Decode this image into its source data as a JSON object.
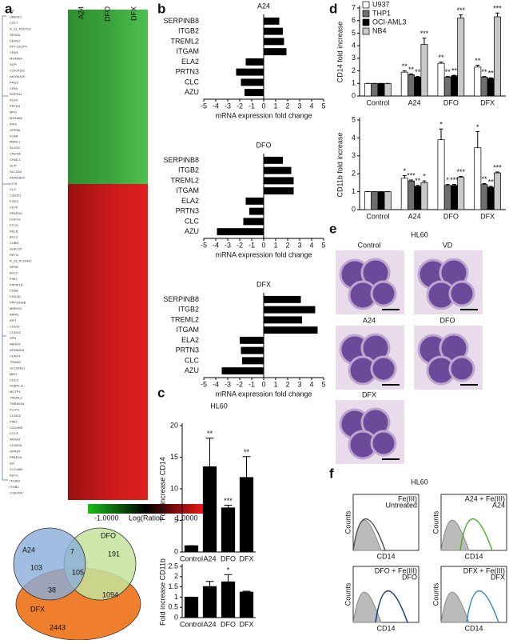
{
  "panel_labels": [
    "a",
    "b",
    "c",
    "d",
    "e",
    "f"
  ],
  "heatmap": {
    "columns": [
      "A24",
      "DFO",
      "DFX"
    ],
    "colorbar_labels": [
      "-1.0000",
      "1.0000"
    ],
    "colorbar_title": "Log(Ratio)",
    "genes": [
      "KIT",
      "UBE2E1",
      "CST7",
      "A_23_P167111",
      "SESN3",
      "CEPA3",
      "DPY19L2P4",
      "CPA3",
      "MS4A6A",
      "SLPI",
      "C20orf103",
      "AK095148",
      "PRG3",
      "CPA3",
      "ROPN1L",
      "PLD4",
      "PRTN3",
      "MPO",
      "MS4A6A",
      "IRF8",
      "GPR56",
      "FLNA",
      "MBNL1",
      "ALDOC",
      "C5orf20",
      "CHI3L1",
      "SLPI",
      "SLC2A5",
      "AK001829",
      "LY75",
      "CLC",
      "C3orf21",
      "FGD3",
      "CD70",
      "PPAPDC",
      "COPG1",
      "PTCD",
      "RELB",
      "BCL3",
      "CUBN",
      "SLBC25",
      "RETN",
      "A_23_P122492",
      "NFKB",
      "BCL2",
      "PIM1",
      "PIP5K1B",
      "CD58",
      "CKN3D",
      "PPP1R16B",
      "MIRHG2",
      "IMPA1",
      "IRF1",
      "CD109",
      "CCNG2",
      "SPN",
      "ABHD3",
      "AF086244",
      "CDRT4",
      "TRIM22",
      "SLC26A11",
      "MEI1",
      "CDC3",
      "OSBPL11",
      "MCTP1",
      "TREML2",
      "TMEM154",
      "FLOT1",
      "CCNG2",
      "PIM1",
      "C22orf35",
      "CCL3",
      "ANXA3",
      "CD300A",
      "GPR34",
      "PPAP2A",
      "ID2",
      "C17orf66",
      "IQCG",
      "ITGAM",
      "ITGB2",
      "C18orf24"
    ]
  },
  "venn": {
    "sets": [
      "A24",
      "DFO",
      "DFX"
    ],
    "regions": [
      "103",
      "7",
      "191",
      "105",
      "38",
      "1094",
      "2443"
    ]
  },
  "chart_data": [
    {
      "type": "hbar",
      "title": "A24",
      "categories": [
        "SERPINB8",
        "ITGB2",
        "TREML2",
        "ITGAM",
        "ELA2",
        "PRTN3",
        "CLC",
        "AZU"
      ],
      "values": [
        1.3,
        1.6,
        1.7,
        1.9,
        -1.5,
        -2.3,
        -1.9,
        -1.6
      ],
      "color": "#000000",
      "xlim": [
        -5,
        5
      ],
      "xticks": [
        -5,
        -4,
        -3,
        -2,
        -1,
        0,
        1,
        2,
        3,
        4,
        5
      ],
      "xlabel": "mRNA expression fold change"
    },
    {
      "type": "hbar",
      "title": "DFO",
      "categories": [
        "SERPINB8",
        "ITGB2",
        "TREML2",
        "ITGAM",
        "ELA2",
        "PRTN3",
        "CLC",
        "AZU"
      ],
      "values": [
        1.6,
        2.3,
        2.5,
        2.5,
        -1.5,
        -1.2,
        -1.7,
        -3.9
      ],
      "color": "#000000",
      "xlim": [
        -5,
        5
      ],
      "xticks": [
        -5,
        -4,
        -3,
        -2,
        -1,
        0,
        1,
        2,
        3,
        4,
        5
      ],
      "xlabel": "mRNA expression fold change"
    },
    {
      "type": "hbar",
      "title": "DFX",
      "categories": [
        "SERPINB8",
        "ITGB2",
        "TREML2",
        "ITGAM",
        "ELA2",
        "PRTN3",
        "CLC",
        "AZU"
      ],
      "values": [
        3.1,
        4.3,
        3.2,
        4.5,
        -2.0,
        -1.9,
        -1.8,
        -3.5
      ],
      "color": "#000000",
      "xlim": [
        -5,
        5
      ],
      "xticks": [
        -5,
        -4,
        -3,
        -2,
        -1,
        0,
        1,
        2,
        3,
        4,
        5
      ],
      "xlabel": "mRNA expression fold change"
    },
    {
      "type": "bar",
      "title": "HL60",
      "ylabel": "Fold increase CD14",
      "categories": [
        "Control",
        "A24",
        "DFO",
        "DFX"
      ],
      "series": [
        {
          "color": "#000000",
          "values": [
            1,
            13.5,
            7,
            11.8
          ],
          "errors": [
            0,
            4.5,
            0.4,
            3.3
          ],
          "annotations": [
            null,
            "**",
            "***",
            "**"
          ]
        }
      ],
      "ylim": [
        0,
        20
      ],
      "yticks": [
        0,
        5,
        10,
        15,
        20
      ]
    },
    {
      "type": "bar",
      "ylabel": "Fold increase CD11b",
      "categories": [
        "Control",
        "A24",
        "DFO",
        "DFX"
      ],
      "series": [
        {
          "color": "#000000",
          "values": [
            1,
            1.52,
            1.75,
            1.25
          ],
          "errors": [
            0,
            0.25,
            0.35,
            0.04
          ],
          "annotations": [
            null,
            null,
            "*",
            null
          ]
        }
      ],
      "ylim": [
        0,
        2.5
      ],
      "yticks": [
        0,
        0.5,
        1,
        1.5,
        2,
        2.5
      ]
    },
    {
      "type": "bar",
      "ylabel": "CD14 fold increase",
      "categories": [
        "Control",
        "A24",
        "DFO",
        "DFX"
      ],
      "legend": "top-left",
      "series": [
        {
          "name": "U937",
          "color": "#ffffff",
          "values": [
            1,
            1.9,
            2.6,
            2.3
          ],
          "errors": [
            0,
            0.1,
            0.1,
            0.15
          ],
          "annotations": [
            null,
            "**",
            "**",
            "**"
          ]
        },
        {
          "name": "THP1",
          "color": "#6e6e6e",
          "values": [
            1,
            1.7,
            1.5,
            1.5
          ],
          "errors": [
            0,
            0.05,
            0.05,
            0.05
          ],
          "annotations": [
            null,
            "**",
            "**",
            "**"
          ]
        },
        {
          "name": "OCI-AML3",
          "color": "#000000",
          "values": [
            1,
            1.5,
            1.6,
            1.4
          ],
          "errors": [
            0,
            0.05,
            0.05,
            0.05
          ],
          "annotations": [
            null,
            "**",
            "**",
            "**"
          ]
        },
        {
          "name": "NB4",
          "color": "#c8c8c8",
          "values": [
            1,
            4.1,
            6.2,
            6.3
          ],
          "errors": [
            0,
            0.5,
            0.25,
            0.3
          ],
          "annotations": [
            null,
            "***",
            "***",
            "***"
          ]
        }
      ],
      "ylim": [
        0,
        7
      ],
      "yticks": [
        0,
        1,
        2,
        3,
        4,
        5,
        6,
        7
      ]
    },
    {
      "type": "bar",
      "ylabel": "CD11b fold increase",
      "categories": [
        "Control",
        "A24",
        "DFO",
        "DFX"
      ],
      "series": [
        {
          "color": "#ffffff",
          "values": [
            1,
            1.75,
            3.9,
            3.45
          ],
          "errors": [
            0,
            0.15,
            0.6,
            0.9
          ],
          "annotations": [
            null,
            "*",
            "*",
            "*"
          ]
        },
        {
          "color": "#6e6e6e",
          "values": [
            1,
            1.6,
            1.35,
            1.4
          ],
          "errors": [
            0,
            0.05,
            0.05,
            0.05
          ],
          "annotations": [
            null,
            "***",
            "*",
            "**"
          ]
        },
        {
          "color": "#000000",
          "values": [
            1,
            1.3,
            1.35,
            1.25
          ],
          "errors": [
            0,
            0.05,
            0.05,
            0.05
          ],
          "annotations": [
            null,
            "**",
            "***",
            "**"
          ]
        },
        {
          "color": "#c8c8c8",
          "values": [
            1,
            1.5,
            1.8,
            2.05
          ],
          "errors": [
            0,
            0.1,
            0.05,
            0.05
          ],
          "annotations": [
            null,
            "*",
            "***",
            "***"
          ]
        }
      ],
      "ylim": [
        0,
        5
      ],
      "yticks": [
        0,
        1,
        2,
        3,
        4,
        5
      ]
    }
  ],
  "micrographs": {
    "title": "HL60",
    "labels": [
      "Control",
      "VD",
      "A24",
      "DFO",
      "DFX"
    ]
  },
  "histograms": {
    "title": "HL60",
    "x_label": "CD14",
    "y_label": "Counts",
    "panels": [
      {
        "legend": [
          "Fe(III)",
          "Untreated"
        ]
      },
      {
        "legend": [
          "A24 + Fe(III)",
          "A24"
        ]
      },
      {
        "legend": [
          "DFO + Fe(III)",
          "DFO"
        ]
      },
      {
        "legend": [
          "DFX + Fe(III)",
          "DFX"
        ]
      }
    ]
  }
}
